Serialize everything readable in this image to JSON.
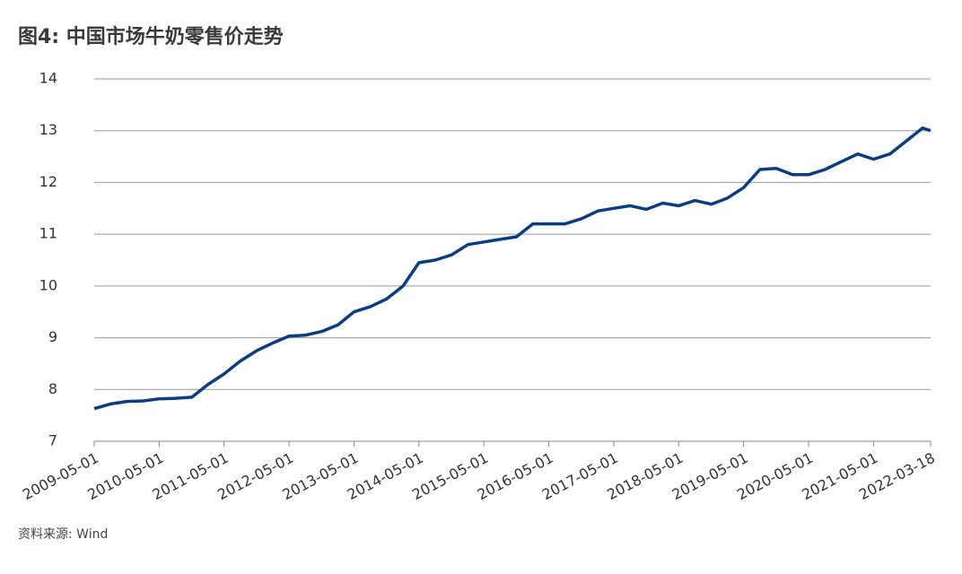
{
  "chart_data": {
    "type": "line",
    "title": "图4: 中国市场牛奶零售价走势",
    "source": "资料来源: Wind",
    "x": [
      "2009-05-01",
      "2009-08-01",
      "2009-11-01",
      "2010-02-01",
      "2010-05-01",
      "2010-08-01",
      "2010-11-01",
      "2011-02-01",
      "2011-05-01",
      "2011-08-01",
      "2011-11-01",
      "2012-02-01",
      "2012-05-01",
      "2012-08-01",
      "2012-11-01",
      "2013-02-01",
      "2013-05-01",
      "2013-08-01",
      "2013-11-01",
      "2014-02-01",
      "2014-05-01",
      "2014-08-01",
      "2014-11-01",
      "2015-02-01",
      "2015-05-01",
      "2015-08-01",
      "2015-11-01",
      "2016-02-01",
      "2016-05-01",
      "2016-08-01",
      "2016-11-01",
      "2017-02-01",
      "2017-05-01",
      "2017-08-01",
      "2017-11-01",
      "2018-02-01",
      "2018-05-01",
      "2018-08-01",
      "2018-11-01",
      "2019-02-01",
      "2019-05-01",
      "2019-08-01",
      "2019-11-01",
      "2020-02-01",
      "2020-05-01",
      "2020-08-01",
      "2020-11-01",
      "2021-02-01",
      "2021-05-01",
      "2021-08-01",
      "2021-11-01",
      "2022-02-01",
      "2022-03-18"
    ],
    "series": [
      {
        "color": "#0d3d80",
        "values": [
          7.63,
          7.72,
          7.77,
          7.78,
          7.82,
          7.83,
          7.85,
          8.1,
          8.3,
          8.55,
          8.75,
          8.9,
          9.03,
          9.05,
          9.12,
          9.25,
          9.5,
          9.6,
          9.75,
          10.0,
          10.45,
          10.5,
          10.6,
          10.8,
          10.85,
          10.9,
          10.95,
          11.2,
          11.2,
          11.2,
          11.3,
          11.45,
          11.5,
          11.55,
          11.48,
          11.6,
          11.55,
          11.65,
          11.58,
          11.7,
          11.9,
          12.25,
          12.27,
          12.15,
          12.15,
          12.25,
          12.4,
          12.55,
          12.45,
          12.55,
          12.8,
          13.05,
          13.0
        ]
      }
    ],
    "xlim": [
      "2009-05-01",
      "2022-03-18"
    ],
    "xticks": [
      "2009-05-01",
      "2010-05-01",
      "2011-05-01",
      "2012-05-01",
      "2013-05-01",
      "2014-05-01",
      "2015-05-01",
      "2016-05-01",
      "2017-05-01",
      "2018-05-01",
      "2019-05-01",
      "2020-05-01",
      "2021-05-01",
      "2022-03-18"
    ],
    "ylim": [
      7,
      14
    ],
    "yticks": [
      7,
      8,
      9,
      10,
      11,
      12,
      13,
      14
    ],
    "grid": true
  }
}
